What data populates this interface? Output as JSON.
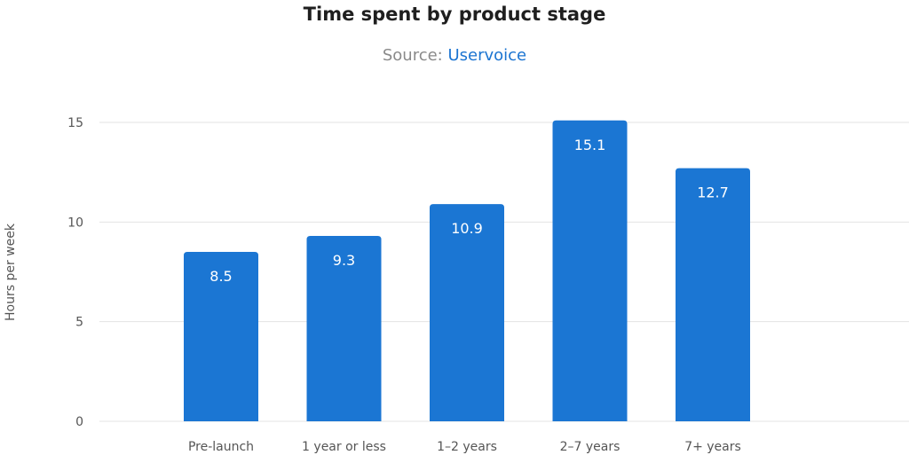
{
  "chart_data": {
    "type": "bar",
    "title": "Time spent by product stage",
    "subtitle_prefix": "Source:",
    "subtitle_source": "Uservoice",
    "ylabel": "Hours per week",
    "xlabel": "",
    "ylim": [
      0,
      15.8
    ],
    "yticks": [
      0,
      5,
      10,
      15
    ],
    "categories": [
      "Pre-launch",
      "1 year or less",
      "1–2 years",
      "2–7 years",
      "7+ years"
    ],
    "values": [
      8.5,
      9.3,
      10.9,
      15.1,
      12.7
    ],
    "value_labels": [
      "8.5",
      "9.3",
      "10.9",
      "15.1",
      "12.7"
    ],
    "grid": true,
    "legend": "none",
    "bar_color": "#1b76d3",
    "accent_color": "#1b74d1"
  }
}
